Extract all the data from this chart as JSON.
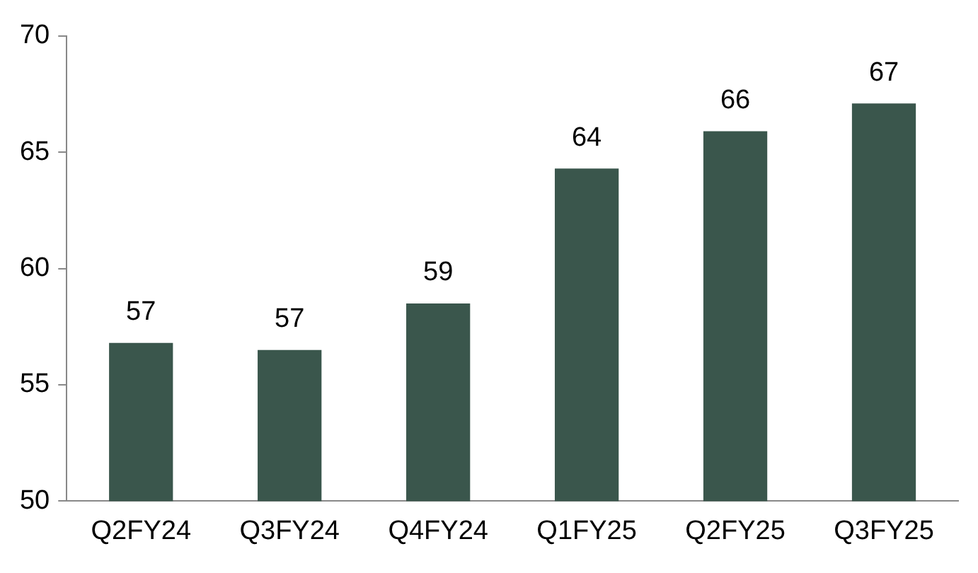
{
  "chart_data": {
    "type": "bar",
    "categories": [
      "Q2FY24",
      "Q3FY24",
      "Q4FY24",
      "Q1FY25",
      "Q2FY25",
      "Q3FY25"
    ],
    "values": [
      56.8,
      56.5,
      58.5,
      64.3,
      65.9,
      67.1
    ],
    "value_labels": [
      "57",
      "57",
      "59",
      "64",
      "66",
      "67"
    ],
    "color": "#3a564c",
    "ylim": [
      50,
      70
    ],
    "yticks": [
      50,
      55,
      60,
      65,
      70
    ],
    "grid": false,
    "legend": false
  }
}
